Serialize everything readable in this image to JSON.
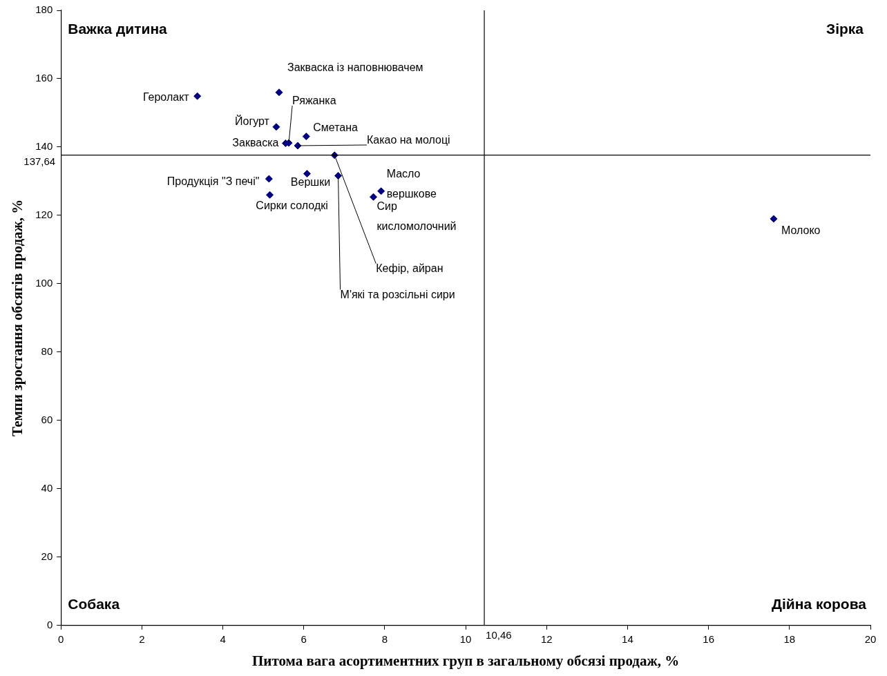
{
  "chart_data": {
    "type": "scatter",
    "xlabel": "Питома вага асортиментних груп в загальному обсязі продаж, %",
    "ylabel": "Темпи зростання обсягів продаж, %",
    "xlim": [
      0,
      20
    ],
    "xticks": [
      0,
      2,
      4,
      6,
      8,
      10,
      12,
      14,
      16,
      18,
      20
    ],
    "ylim": [
      0,
      180
    ],
    "yticks": [
      0,
      20,
      40,
      60,
      80,
      100,
      120,
      140,
      160,
      180
    ],
    "grid": false,
    "legend": false,
    "marker": "diamond",
    "series": [
      {
        "color": "#000080",
        "x": [
          3.37,
          5.39,
          5.63,
          5.32,
          5.55,
          6.06,
          5.85,
          6.76,
          6.85,
          6.08,
          5.14,
          5.16,
          7.91,
          7.72,
          17.61
        ],
        "values": [
          154.9,
          156.0,
          141.2,
          145.9,
          141.1,
          143.1,
          140.4,
          137.6,
          131.6,
          132.2,
          130.7,
          126.0,
          127.1,
          125.4,
          119.0
        ]
      }
    ],
    "ref_lines": [
      {
        "axis": "x",
        "value": 10.46,
        "label": "10,46",
        "color": "#000000"
      },
      {
        "axis": "y",
        "value": 137.64,
        "label": "137,64",
        "color": "#000000"
      }
    ],
    "annotations": [
      "Важка дитина",
      "Зірка",
      "Собака",
      "Дійна корова",
      {
        "text": "Геролакт",
        "x": 3.37,
        "y": 154.9
      },
      {
        "text": "Закваска із наповнювачем",
        "x": 5.39,
        "y": 156.0
      },
      {
        "text": "Ряжанка",
        "x": 5.63,
        "y": 141.2
      },
      {
        "text": "Йогурт",
        "x": 5.32,
        "y": 145.9
      },
      {
        "text": "Закваска",
        "x": 5.55,
        "y": 141.1
      },
      {
        "text": "Сметана",
        "x": 6.06,
        "y": 143.1
      },
      {
        "text": "Какао на молоці",
        "x": 5.85,
        "y": 140.4
      },
      {
        "text": "Кефір, айран",
        "x": 6.76,
        "y": 137.6
      },
      {
        "text": "М'які та розсільні сири",
        "x": 6.85,
        "y": 131.6
      },
      {
        "text": "Вершки",
        "x": 6.08,
        "y": 132.2
      },
      {
        "text": "Продукція \"З печі\"",
        "x": 5.14,
        "y": 130.7
      },
      {
        "text": "Сирки солодкі",
        "x": 5.16,
        "y": 126.0
      },
      {
        "text": "Масло вершкове",
        "x": 7.91,
        "y": 127.1
      },
      {
        "text": "Сир кисломолочний",
        "x": 7.72,
        "y": 125.4
      },
      {
        "text": "Молоко",
        "x": 17.61,
        "y": 119.0
      }
    ]
  }
}
